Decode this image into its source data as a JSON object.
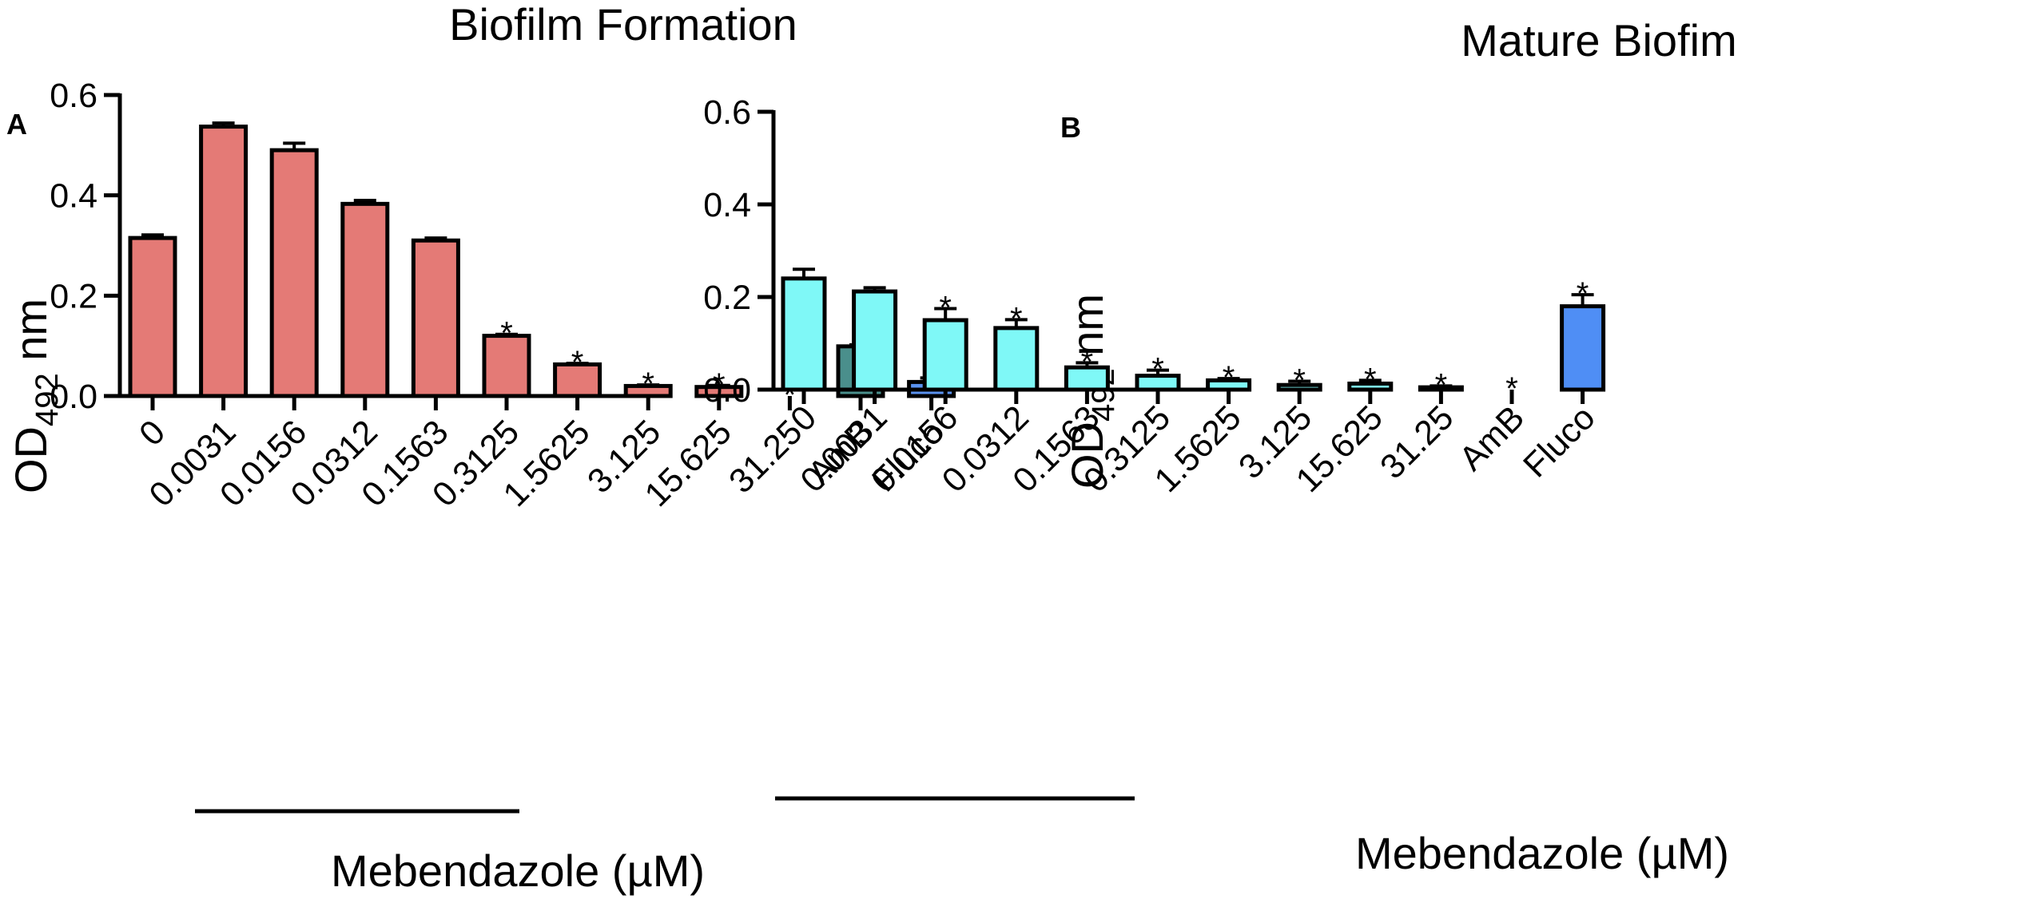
{
  "chart_data": [
    {
      "type": "bar",
      "panel": "A",
      "title": "Biofilm Formation",
      "ylabel": {
        "main": "OD",
        "subscript": "492",
        "unit": " nm"
      },
      "xlabel": "Mebendazole (µM)",
      "ylim": [
        0,
        0.6
      ],
      "yticks": [
        "0.0",
        "0.2",
        "0.4",
        "0.6"
      ],
      "ytick_values": [
        0,
        0.2,
        0.4,
        0.6
      ],
      "categories": [
        "0",
        "0.0031",
        "0.0156",
        "0.0312",
        "0.1563",
        "0.3125",
        "1.5625",
        "3.125",
        "15.625",
        "31.25",
        "AmB",
        "Fluco"
      ],
      "values": [
        0.315,
        0.537,
        0.49,
        0.383,
        0.31,
        0.12,
        0.063,
        0.02,
        0.018,
        0.0,
        0.099,
        0.028
      ],
      "errors": [
        0.006,
        0.007,
        0.014,
        0.007,
        0.005,
        0.003,
        0.002,
        0.002,
        0.003,
        0.0,
        0.003,
        0.008
      ],
      "significance": [
        "",
        "",
        "",
        "",
        "",
        "*",
        "*",
        "*",
        "*",
        "*",
        "*",
        "*"
      ],
      "bar_colors": [
        "#e47a76",
        "#e47a76",
        "#e47a76",
        "#e47a76",
        "#e47a76",
        "#e47a76",
        "#e47a76",
        "#e47a76",
        "#e47a76",
        "#e47a76",
        "#4a8f8c",
        "#5a92ef"
      ]
    },
    {
      "type": "bar",
      "panel": "B",
      "title": "Mature Biofim",
      "ylabel": {
        "main": "OD",
        "subscript": "492",
        "unit": " nm"
      },
      "xlabel": "Mebendazole (µM)",
      "ylim": [
        0,
        0.6
      ],
      "yticks": [
        "0.0",
        "0.2",
        "0.4",
        "0.6"
      ],
      "ytick_values": [
        0,
        0.2,
        0.4,
        0.6
      ],
      "categories": [
        "0",
        "0.0031",
        "0.0156",
        "0.0312",
        "0.1563",
        "0.3125",
        "1.5625",
        "3.125",
        "15.625",
        "31.25",
        "AmB",
        "Fluco"
      ],
      "values": [
        0.24,
        0.212,
        0.15,
        0.133,
        0.048,
        0.03,
        0.02,
        0.01,
        0.013,
        0.005,
        0.0,
        0.18
      ],
      "errors": [
        0.02,
        0.008,
        0.025,
        0.018,
        0.01,
        0.012,
        0.004,
        0.008,
        0.007,
        0.003,
        0.0,
        0.025
      ],
      "significance": [
        "",
        "",
        "*",
        "*",
        "*",
        "*",
        "*",
        "*",
        "*",
        "*",
        "*",
        "*"
      ],
      "bar_colors": [
        "#7ff8f7",
        "#7ff8f7",
        "#7ff8f7",
        "#7ff8f7",
        "#7ff8f7",
        "#7ff8f7",
        "#7ff8f7",
        "#7ff8f7",
        "#7ff8f7",
        "#7ff8f7",
        "#7ff8f7",
        "#4f8ef5"
      ]
    }
  ]
}
